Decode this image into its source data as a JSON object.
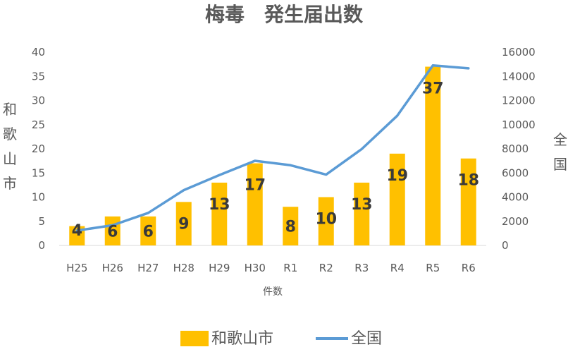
{
  "chart_data": {
    "type": "bar",
    "title": "梅毒　発生届出数",
    "xlabel": "件数",
    "ylabel": "和歌山市",
    "y2label": "全国",
    "categories": [
      "H25",
      "H26",
      "H27",
      "H28",
      "H29",
      "H30",
      "R1",
      "R2",
      "R3",
      "R4",
      "R5",
      "R6"
    ],
    "ylim": [
      0,
      40
    ],
    "yticks": [
      0,
      5,
      10,
      15,
      20,
      25,
      30,
      35,
      40
    ],
    "y2lim": [
      0,
      16000
    ],
    "y2ticks": [
      0,
      2000,
      4000,
      6000,
      8000,
      10000,
      12000,
      14000,
      16000
    ],
    "grid": false,
    "legend_position": "bottom",
    "series": [
      {
        "name": "和歌山市",
        "type": "bar",
        "axis": "left",
        "color": "#FFC000",
        "values": [
          4,
          6,
          6,
          9,
          13,
          17,
          8,
          10,
          13,
          19,
          37,
          18
        ],
        "data_labels": true
      },
      {
        "name": "全国",
        "type": "line",
        "axis": "right",
        "color": "#5B9BD5",
        "values": [
          1228,
          1671,
          2690,
          4575,
          5826,
          7007,
          6642,
          5867,
          7978,
          10742,
          14906,
          14663
        ],
        "data_labels": false
      }
    ]
  }
}
